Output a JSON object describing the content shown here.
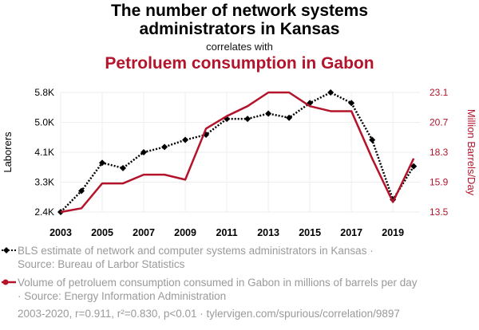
{
  "title_line1": "The number of network systems",
  "title_line2": "administrators in Kansas",
  "correlates_text": "correlates with",
  "subtitle_red": "Petroluem consumption in Gabon",
  "chart_data": {
    "type": "line",
    "x": [
      2003,
      2004,
      2005,
      2006,
      2007,
      2008,
      2009,
      2010,
      2011,
      2012,
      2013,
      2014,
      2015,
      2016,
      2017,
      2018,
      2019,
      2020
    ],
    "x_tick_labels": [
      "2003",
      "2005",
      "2007",
      "2009",
      "2011",
      "2013",
      "2015",
      "2017",
      "2019"
    ],
    "x_tick_values": [
      2003,
      2005,
      2007,
      2009,
      2011,
      2013,
      2015,
      2017,
      2019
    ],
    "xlim": [
      2003,
      2020.3
    ],
    "left_axis": {
      "label": "Laborers",
      "ylim": [
        2400,
        5800
      ],
      "tick_labels": [
        "2.4K",
        "3.3K",
        "4.1K",
        "5.0K",
        "5.8K"
      ],
      "tick_values": [
        2400,
        3250,
        4100,
        4950,
        5800
      ]
    },
    "right_axis": {
      "label": "Million Barrels/Day",
      "ylim": [
        13.5,
        23.1
      ],
      "tick_labels": [
        "13.5",
        "15.9",
        "18.3",
        "20.7",
        "23.1"
      ],
      "tick_values": [
        13.5,
        15.9,
        18.3,
        20.7,
        23.1
      ]
    },
    "series": [
      {
        "name": "BLS estimate of network and computer systems administrators in Kansas",
        "axis": "left",
        "color": "#000000",
        "style": "dotted",
        "marker": "diamond",
        "values": [
          2400,
          3000,
          3800,
          3650,
          4100,
          4250,
          4450,
          4600,
          5050,
          5050,
          5200,
          5080,
          5500,
          5800,
          5500,
          4450,
          2750,
          3700
        ]
      },
      {
        "name": "Volume of petroluem consumption consumed in Gabon in millions of barrels per day",
        "axis": "right",
        "color": "#b3142b",
        "style": "solid",
        "marker": "circle",
        "values": [
          13.5,
          13.8,
          15.8,
          15.8,
          16.5,
          16.5,
          16.1,
          20.2,
          21.2,
          22.0,
          23.1,
          23.1,
          22.0,
          21.6,
          21.6,
          17.8,
          14.3,
          17.8
        ]
      }
    ]
  },
  "legend": {
    "item1_line1": "BLS estimate of network and computer systems administrators in Kansas ·",
    "item1_line2": "Source: Bureau of Larbor Statistics",
    "item2_line1": "Volume of petroluem consumption consumed in Gabon in millions of barrels per day",
    "item2_line2": "· Source: Energy Information Administration"
  },
  "footer": "2003-2020, r=0.911, r²=0.830, p<0.01 · tylervigen.com/spurious/correlation/9897"
}
